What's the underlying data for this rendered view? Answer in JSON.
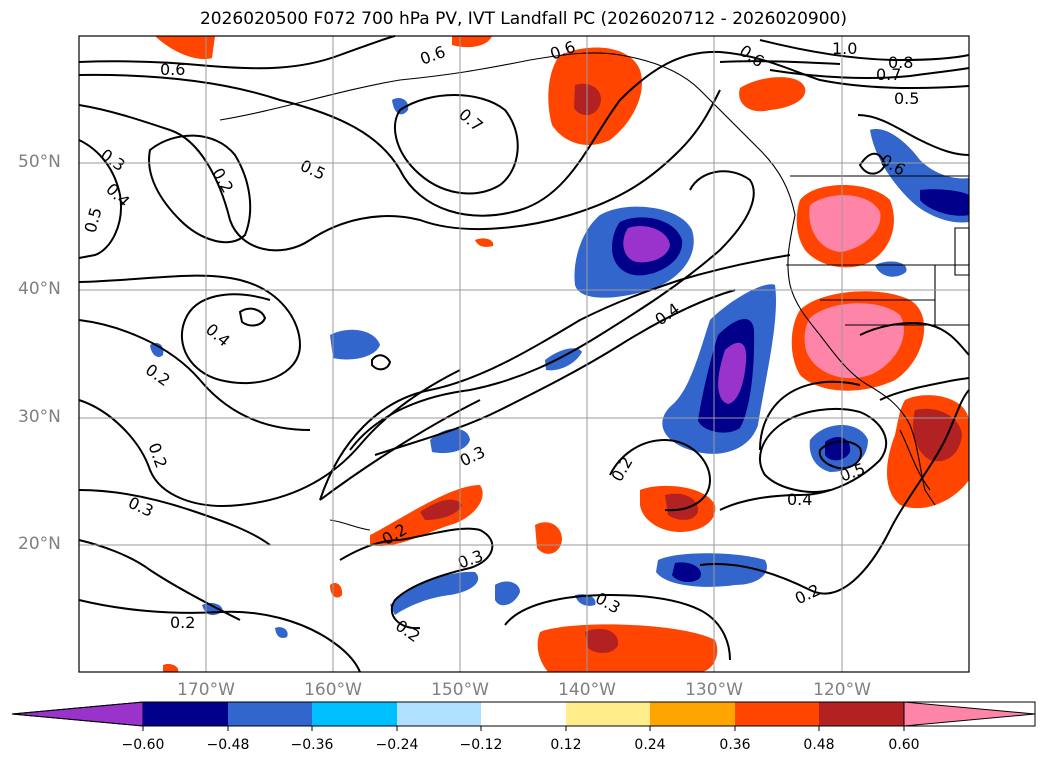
{
  "title": "2026020500 F072 700 hPa PV, IVT Landfall PC (2026020712 - 2026020900)",
  "map": {
    "lat_labels": [
      "50°N",
      "40°N",
      "30°N",
      "20°N"
    ],
    "lon_labels": [
      "170°W",
      "160°W",
      "150°W",
      "140°W",
      "130°W",
      "120°W"
    ],
    "contour_labels": [
      "0.6",
      "0.6",
      "0.6",
      "0.6",
      "1.0",
      "0.8",
      "0.7",
      "0.5",
      "0.7",
      "0.5",
      "0.3",
      "0.4",
      "0.5",
      "0.2",
      "0.6",
      "0.4",
      "0.4",
      "0.2",
      "0.2",
      "0.3",
      "0.3",
      "0.2",
      "0.2",
      "0.3",
      "0.3",
      "0.2",
      "0.2",
      "0.5",
      "0.4",
      "0.2"
    ]
  },
  "colorbar": {
    "tick_labels": [
      "−0.60",
      "−0.48",
      "−0.36",
      "−0.24",
      "−0.12",
      "0.12",
      "0.24",
      "0.36",
      "0.48",
      "0.60"
    ],
    "colors": [
      "#9933cc",
      "#00008b",
      "#3366cc",
      "#00bfff",
      "#b0e0ff",
      "#ffffff",
      "#ffec8b",
      "#ffa500",
      "#ff4500",
      "#b22222",
      "#ff85a8"
    ]
  }
}
